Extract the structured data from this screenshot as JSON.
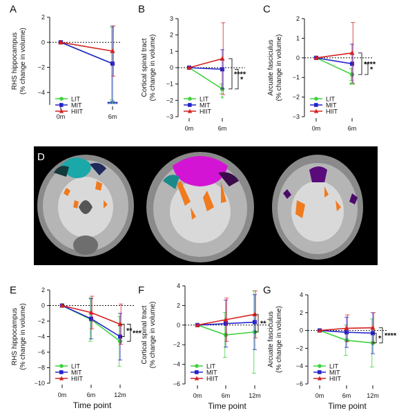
{
  "colors": {
    "LIT": "#3cd23c",
    "MIT": "#2222cc",
    "HIIT": "#d42020"
  },
  "chart_data": [
    {
      "panel": "A",
      "type": "line",
      "ylabel": "RHS hippocampus",
      "ylabel2": "(% change in volume)",
      "categories": [
        "0m",
        "6m"
      ],
      "ylim": [
        -5,
        2
      ],
      "yticks": [
        2,
        0,
        -2,
        -4
      ],
      "series": [
        {
          "name": "LIT",
          "values": [
            0,
            -1.7
          ],
          "err": [
            0,
            2.9
          ]
        },
        {
          "name": "MIT",
          "values": [
            0,
            -1.7
          ],
          "err": [
            0,
            3.0
          ]
        },
        {
          "name": "HIIT",
          "values": [
            0,
            -0.7
          ],
          "err": [
            0,
            2.0
          ]
        }
      ],
      "sig": [
        {
          "text": "***",
          "series": "LIT"
        },
        {
          "text": "****",
          "series": "MIT"
        }
      ]
    },
    {
      "panel": "B",
      "type": "line",
      "ylabel": "Cortical spinal tract",
      "ylabel2": "(% change in volume)",
      "categories": [
        "0m",
        "6m"
      ],
      "ylim": [
        -3,
        3
      ],
      "yticks": [
        3,
        2,
        1,
        0,
        -1,
        -2,
        -3
      ],
      "series": [
        {
          "name": "LIT",
          "values": [
            0,
            -1.3
          ],
          "err": [
            0,
            0.3
          ]
        },
        {
          "name": "MIT",
          "values": [
            0,
            -0.1
          ],
          "err": [
            0,
            1.2
          ]
        },
        {
          "name": "HIIT",
          "values": [
            0,
            0.55
          ],
          "err": [
            0,
            2.2
          ]
        }
      ],
      "sig": [
        {
          "text": "*",
          "series": "LIT"
        }
      ],
      "brackets": [
        {
          "text": "****",
          "from": "HIIT",
          "to": "LIT"
        },
        {
          "text": "*",
          "from": "MIT",
          "to": "LIT"
        }
      ]
    },
    {
      "panel": "C",
      "type": "line",
      "ylabel": "Arcuate fasciculus",
      "ylabel2": "(% change in volume)",
      "categories": [
        "0m",
        "6m"
      ],
      "ylim": [
        -3,
        2
      ],
      "yticks": [
        2,
        1,
        0,
        -1,
        -2,
        -3
      ],
      "series": [
        {
          "name": "LIT",
          "values": [
            0,
            -0.85
          ],
          "err": [
            0,
            0.3
          ]
        },
        {
          "name": "MIT",
          "values": [
            0,
            -0.3
          ],
          "err": [
            0,
            1.0
          ]
        },
        {
          "name": "HIIT",
          "values": [
            0,
            0.25
          ],
          "err": [
            0,
            1.55
          ]
        }
      ],
      "sig": [
        {
          "text": "**",
          "series": "LIT"
        }
      ],
      "brackets": [
        {
          "text": "****",
          "from": "HIIT",
          "to": "LIT"
        },
        {
          "text": "*",
          "from": "MIT",
          "to": "LIT"
        }
      ]
    },
    {
      "panel": "E",
      "type": "line",
      "xlabel": "Time point",
      "ylabel": "RHS hippocampus",
      "ylabel2": "(% change in volume)",
      "categories": [
        "0m",
        "6m",
        "12m"
      ],
      "ylim": [
        -10,
        2
      ],
      "yticks": [
        2,
        0,
        -2,
        -4,
        -6,
        -8,
        -10
      ],
      "series": [
        {
          "name": "LIT",
          "values": [
            0,
            -1.8,
            -4.6
          ],
          "err": [
            0,
            2.8,
            3.2
          ]
        },
        {
          "name": "MIT",
          "values": [
            0,
            -1.7,
            -4.0
          ],
          "err": [
            0,
            2.6,
            3.0
          ]
        },
        {
          "name": "HIIT",
          "values": [
            0,
            -0.9,
            -2.4
          ],
          "err": [
            0,
            2.1,
            2.6
          ]
        }
      ],
      "brackets": [
        {
          "text": "**",
          "from": "HIIT",
          "to": "MIT"
        },
        {
          "text": "***",
          "from": "HIIT",
          "to": "LIT"
        }
      ]
    },
    {
      "panel": "F",
      "type": "line",
      "xlabel": "Time point",
      "ylabel": "Cortical spinal tract",
      "ylabel2": "(% change in volume)",
      "categories": [
        "0m",
        "6m",
        "12m"
      ],
      "ylim": [
        -6,
        4
      ],
      "yticks": [
        4,
        2,
        0,
        -2,
        -4,
        -6
      ],
      "series": [
        {
          "name": "LIT",
          "values": [
            0,
            -1.0,
            -0.7
          ],
          "err": [
            0,
            2.3,
            4.2
          ]
        },
        {
          "name": "MIT",
          "values": [
            0,
            0.15,
            0.3
          ],
          "err": [
            0,
            2.4,
            2.8
          ]
        },
        {
          "name": "HIIT",
          "values": [
            0,
            0.55,
            1.1
          ],
          "err": [
            0,
            2.2,
            2.4
          ]
        }
      ],
      "brackets": [
        {
          "text": "**",
          "from": "HIIT",
          "to": "LIT"
        }
      ]
    },
    {
      "panel": "G",
      "type": "line",
      "xlabel": "Time point",
      "ylabel": "Arcuate fasciculus",
      "ylabel2": "(% change in volume)",
      "categories": [
        "0m",
        "6m",
        "12m"
      ],
      "ylim": [
        -6,
        4
      ],
      "yticks": [
        4,
        2,
        0,
        -2,
        -4,
        -6
      ],
      "series": [
        {
          "name": "LIT",
          "values": [
            0,
            -1.1,
            -1.4
          ],
          "err": [
            0,
            1.7,
            2.7
          ]
        },
        {
          "name": "MIT",
          "values": [
            0,
            -0.2,
            -0.3
          ],
          "err": [
            0,
            1.7,
            2.3
          ]
        },
        {
          "name": "HIIT",
          "values": [
            0,
            0.25,
            0.3
          ],
          "err": [
            0,
            1.5,
            1.7
          ]
        }
      ],
      "brackets": [
        {
          "text": "*",
          "from": "MIT",
          "to": "LIT"
        },
        {
          "text": "****",
          "from": "HIIT",
          "to": "LIT"
        }
      ]
    }
  ],
  "image_panel": {
    "label": "D"
  },
  "legend_labels": [
    "LIT",
    "MIT",
    "HIIT"
  ]
}
